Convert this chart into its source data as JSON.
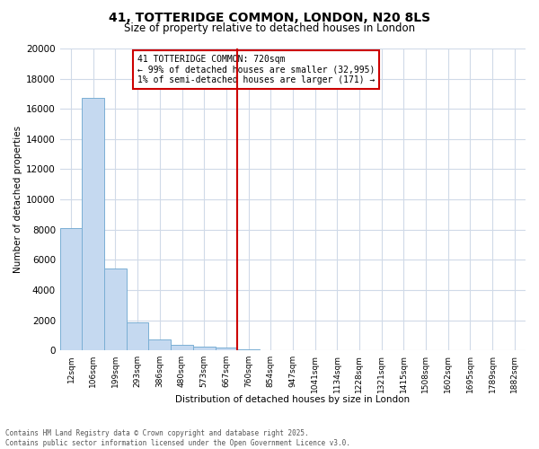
{
  "title": "41, TOTTERIDGE COMMON, LONDON, N20 8LS",
  "subtitle": "Size of property relative to detached houses in London",
  "xlabel": "Distribution of detached houses by size in London",
  "ylabel": "Number of detached properties",
  "bar_color": "#c5d9f0",
  "bar_edge_color": "#7aafd4",
  "categories": [
    "12sqm",
    "106sqm",
    "199sqm",
    "293sqm",
    "386sqm",
    "480sqm",
    "573sqm",
    "667sqm",
    "760sqm",
    "854sqm",
    "947sqm",
    "1041sqm",
    "1134sqm",
    "1228sqm",
    "1321sqm",
    "1415sqm",
    "1508sqm",
    "1602sqm",
    "1695sqm",
    "1789sqm",
    "1882sqm"
  ],
  "values": [
    8100,
    16700,
    5400,
    1850,
    750,
    350,
    250,
    200,
    100,
    0,
    0,
    0,
    0,
    0,
    0,
    0,
    0,
    0,
    0,
    0,
    0
  ],
  "vline_position": 7.5,
  "vline_color": "#cc0000",
  "annotation_text_line1": "41 TOTTERIDGE COMMON: 720sqm",
  "annotation_text_line2": "← 99% of detached houses are smaller (32,995)",
  "annotation_text_line3": "1% of semi-detached houses are larger (171) →",
  "annotation_box_color": "#cc0000",
  "ylim": [
    0,
    20000
  ],
  "yticks": [
    0,
    2000,
    4000,
    6000,
    8000,
    10000,
    12000,
    14000,
    16000,
    18000,
    20000
  ],
  "footer_line1": "Contains HM Land Registry data © Crown copyright and database right 2025.",
  "footer_line2": "Contains public sector information licensed under the Open Government Licence v3.0.",
  "bg_color": "#ffffff",
  "plot_bg_color": "#ffffff",
  "grid_color": "#d0dae8"
}
